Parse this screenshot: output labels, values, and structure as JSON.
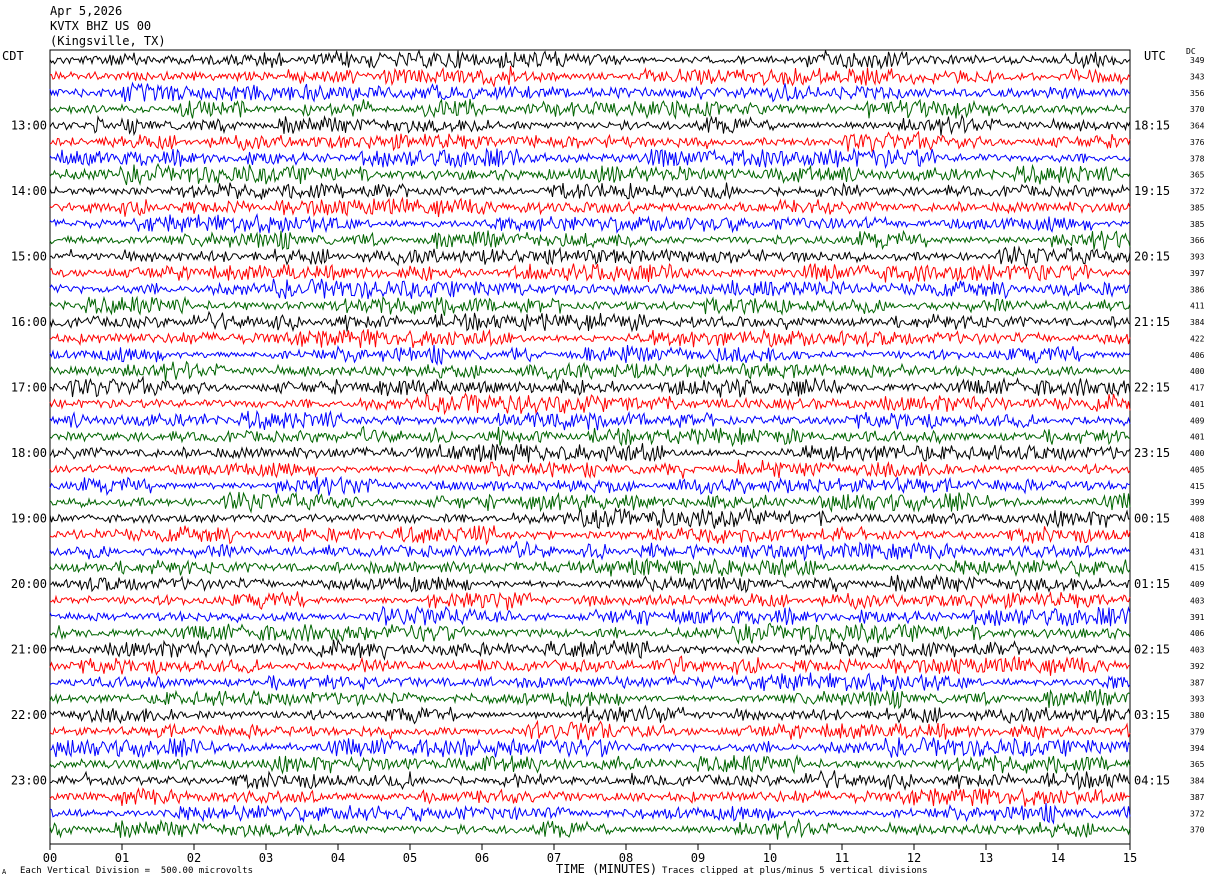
{
  "header": {
    "date": "Apr 5,2026",
    "station": "KVTX BHZ US 00",
    "location": "(Kingsville, TX)"
  },
  "left_tz": "CDT",
  "right_tz": "UTC",
  "dc_label": "DC",
  "xlabel": "TIME (MINUTES)",
  "footer_left": "Each Vertical Division =  500.00 microvolts",
  "footer_right": "Traces clipped at plus/minus 5 vertical divisions",
  "footer_mark": "A",
  "chart_data": {
    "type": "line",
    "xlim": [
      0,
      15
    ],
    "x_ticks": [
      "00",
      "01",
      "02",
      "03",
      "04",
      "05",
      "06",
      "07",
      "08",
      "09",
      "10",
      "11",
      "12",
      "13",
      "14",
      "15"
    ],
    "left_time_labels": [
      "13:00",
      "14:00",
      "15:00",
      "16:00",
      "17:00",
      "18:00",
      "19:00",
      "20:00",
      "21:00",
      "22:00",
      "23:00"
    ],
    "right_time_labels": [
      "18:15",
      "19:15",
      "20:15",
      "21:15",
      "22:15",
      "23:15",
      "00:15",
      "01:15",
      "02:15",
      "03:15",
      "04:15"
    ],
    "trace_colors": [
      "#000000",
      "#ff0000",
      "#0000ff",
      "#006400"
    ],
    "dc_offsets": [
      "349",
      "343",
      "356",
      "370",
      "364",
      "376",
      "378",
      "365",
      "372",
      "385",
      "385",
      "366",
      "393",
      "397",
      "386",
      "411",
      "384",
      "422",
      "406",
      "400",
      "417",
      "401",
      "409",
      "401",
      "400",
      "405",
      "415",
      "399",
      "408",
      "418",
      "431",
      "415",
      "409",
      "403",
      "391",
      "406",
      "403",
      "392",
      "387",
      "393",
      "380",
      "379",
      "394",
      "365",
      "384",
      "387",
      "372",
      "370"
    ]
  }
}
